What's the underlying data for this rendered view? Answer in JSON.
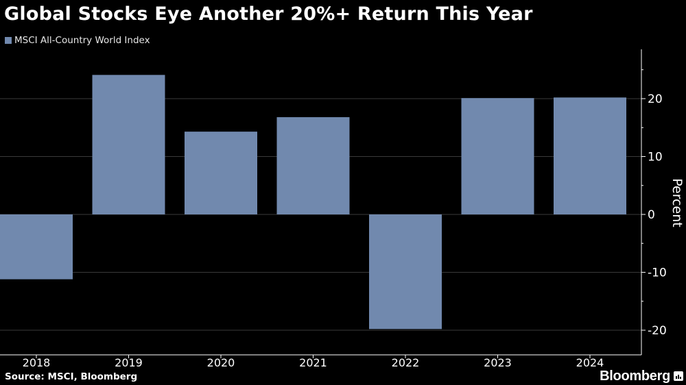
{
  "chart_data": {
    "type": "bar",
    "title": "Global Stocks Eye Another 20%+ Return This Year",
    "categories": [
      "2018",
      "2019",
      "2020",
      "2021",
      "2022",
      "2023",
      "2024"
    ],
    "series": [
      {
        "name": "MSCI All-Country World Index",
        "values": [
          -11.2,
          24.1,
          14.3,
          16.8,
          -19.8,
          20.1,
          20.2
        ],
        "color": "#7189ae"
      }
    ],
    "xlabel": "",
    "ylabel": "Percent",
    "ylim": [
      -24,
      28
    ],
    "yticks": [
      -20,
      -10,
      0,
      10,
      20
    ],
    "ytick_labels": [
      "-20",
      "-10",
      "0",
      "10",
      "20"
    ],
    "y_axis_position": "right",
    "grid": true,
    "legend_position": "top-left"
  },
  "footer": {
    "source": "Source: MSCI, Bloomberg",
    "brand": "Bloomberg"
  },
  "colors": {
    "background": "#000000",
    "bar": "#7189ae",
    "grid": "#3a3a3a",
    "text": "#ffffff"
  }
}
